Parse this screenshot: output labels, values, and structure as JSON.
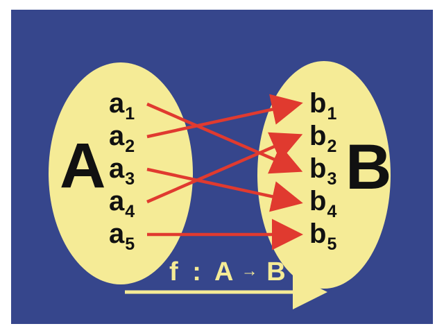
{
  "colors": {
    "background": "#36468c",
    "set_fill": "#f5eb96",
    "arrow": "#e03a2f",
    "function_arrow": "#f5eb96",
    "function_label": "#f5eb96",
    "text": "#111111"
  },
  "set_a": {
    "label": "A",
    "elements": [
      {
        "base": "a",
        "sub": "1"
      },
      {
        "base": "a",
        "sub": "2"
      },
      {
        "base": "a",
        "sub": "3"
      },
      {
        "base": "a",
        "sub": "4"
      },
      {
        "base": "a",
        "sub": "5"
      }
    ]
  },
  "set_b": {
    "label": "B",
    "elements": [
      {
        "base": "b",
        "sub": "1"
      },
      {
        "base": "b",
        "sub": "2"
      },
      {
        "base": "b",
        "sub": "3"
      },
      {
        "base": "b",
        "sub": "4"
      },
      {
        "base": "b",
        "sub": "5"
      }
    ]
  },
  "mapping": [
    {
      "from": "a1",
      "to": "b3"
    },
    {
      "from": "a2",
      "to": "b1"
    },
    {
      "from": "a3",
      "to": "b4"
    },
    {
      "from": "a4",
      "to": "b2"
    },
    {
      "from": "a5",
      "to": "b5"
    }
  ],
  "function": {
    "name": "f",
    "colon": ":",
    "domain": "A",
    "arrow": "→",
    "codomain": "B"
  }
}
